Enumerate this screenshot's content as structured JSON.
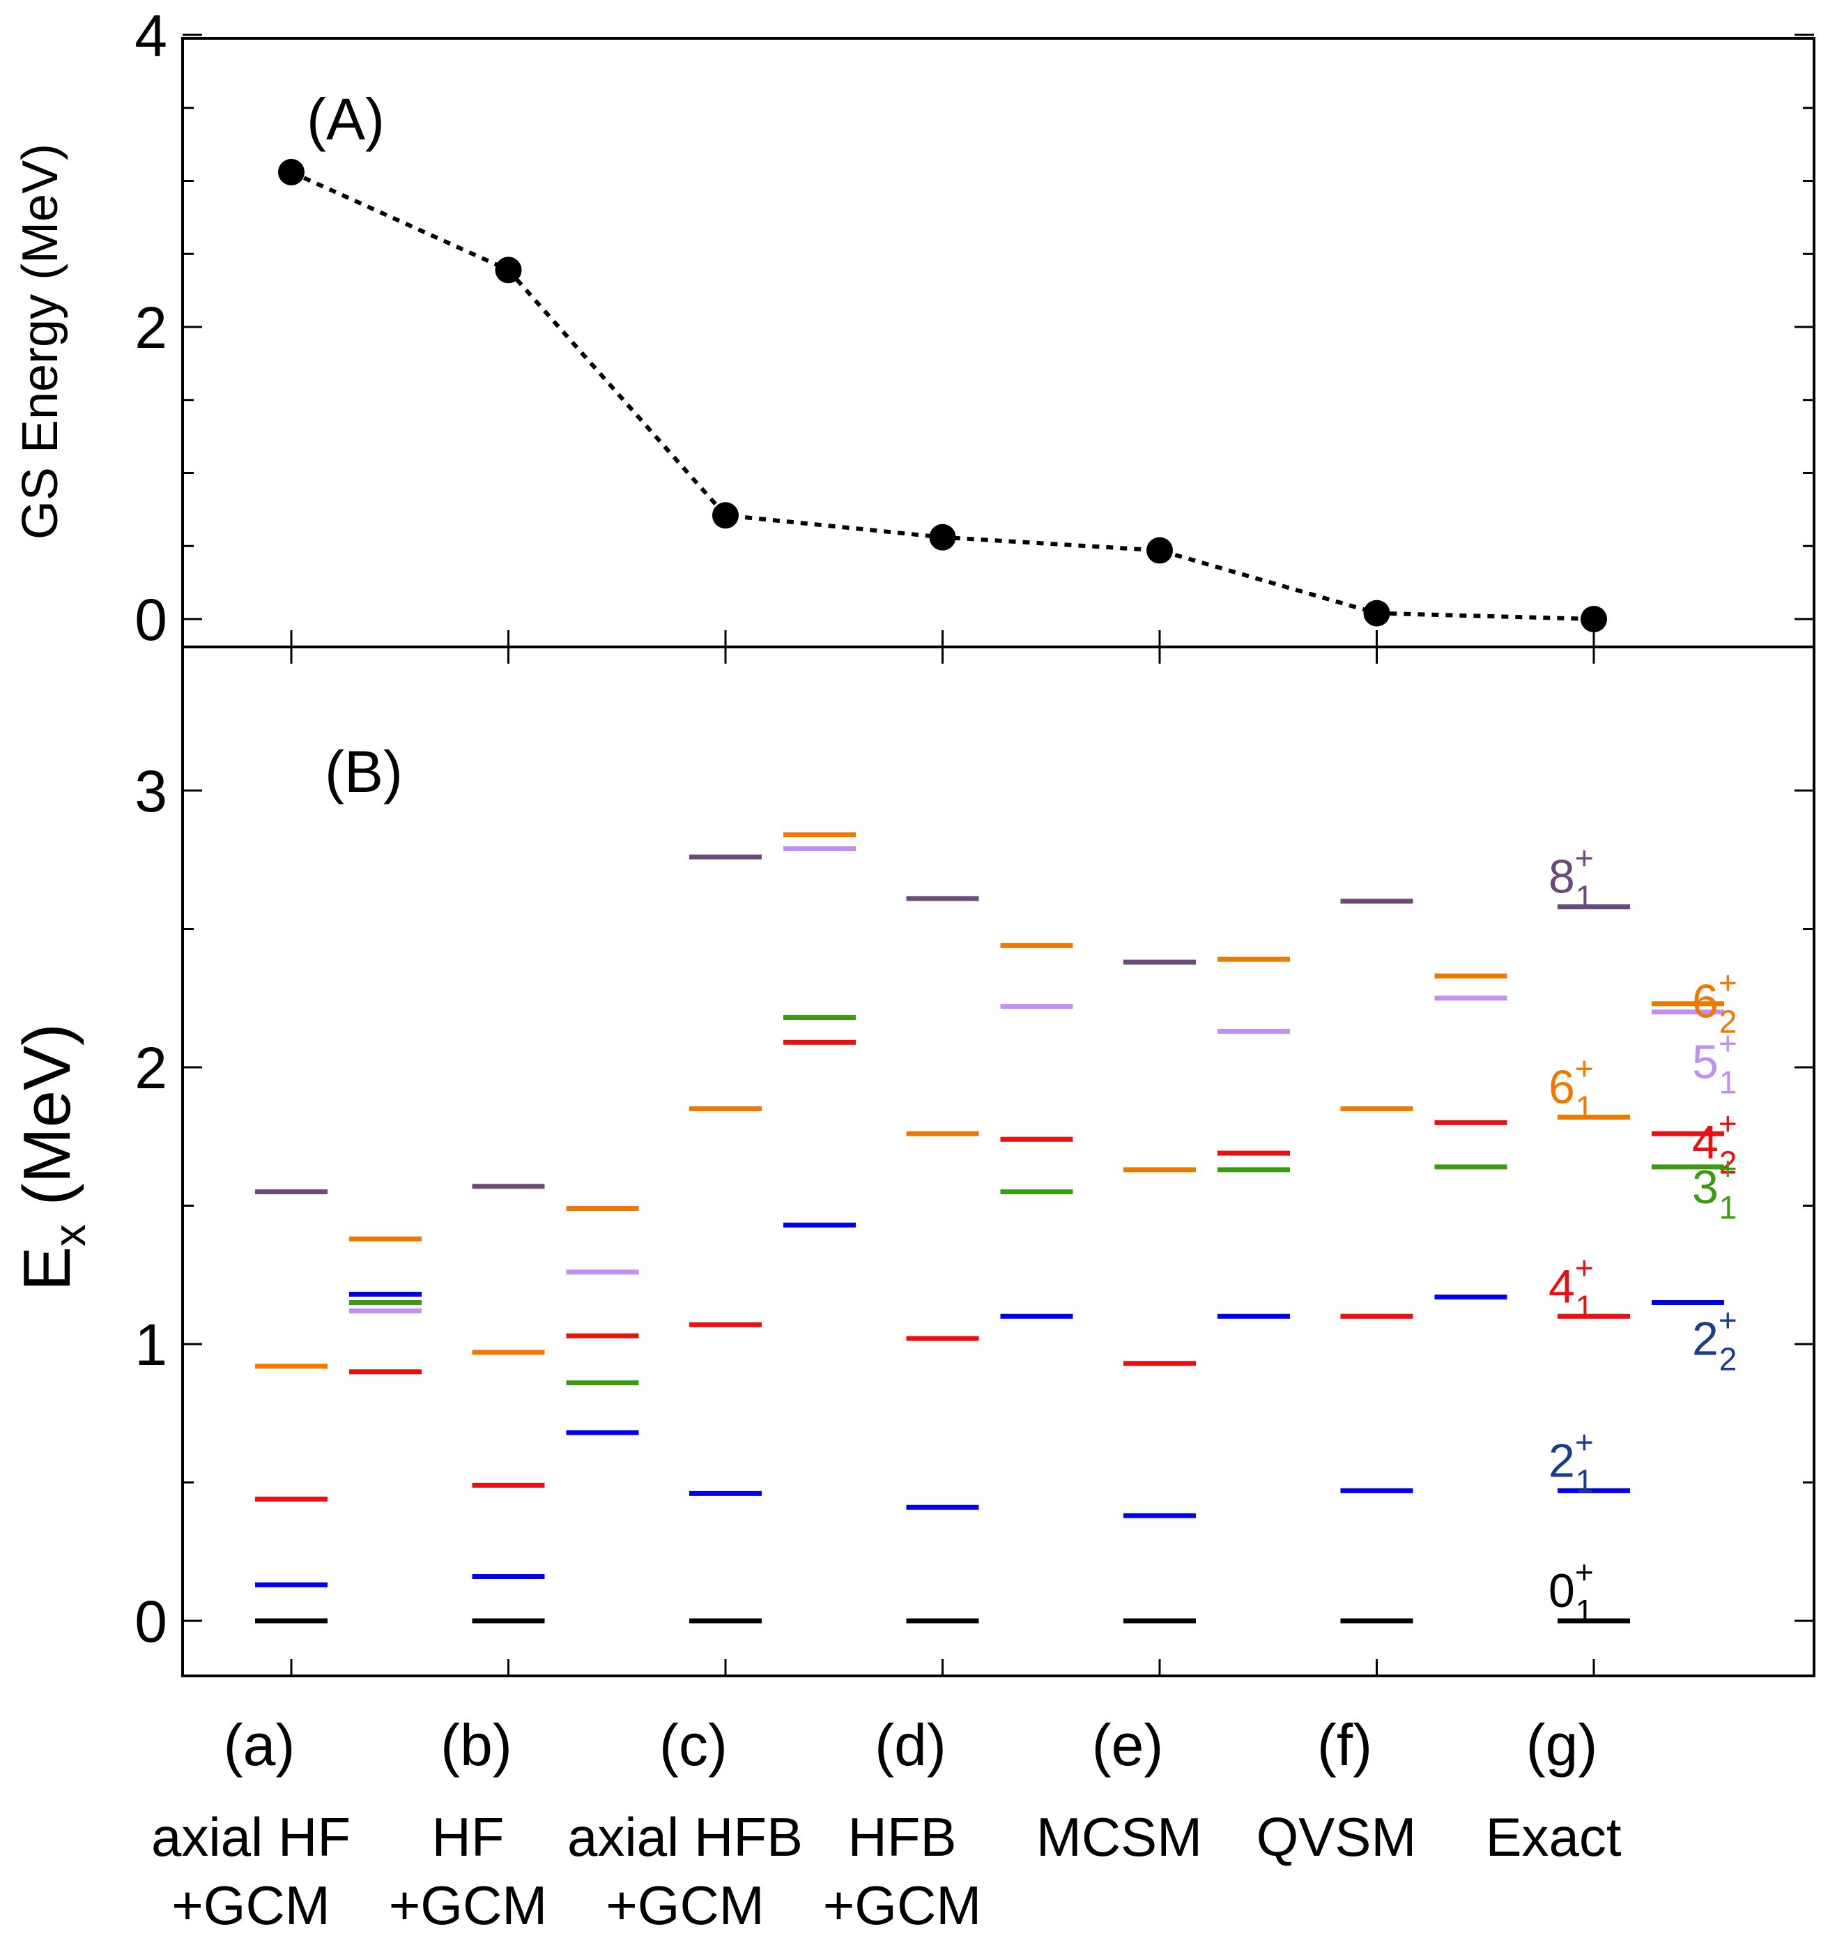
{
  "chart_data": [
    {
      "panel": "A",
      "type": "line",
      "title": "",
      "panel_label": "(A)",
      "xlabel": "",
      "ylabel": "GS Energy (MeV)",
      "ylim": [
        -0.35,
        4.0
      ],
      "yticks": [
        0,
        2,
        4
      ],
      "ytick_labels": [
        "0",
        "2",
        "4"
      ],
      "line_style": "dotted",
      "marker": "filled-circle",
      "color": "#000000",
      "x": [
        "a",
        "b",
        "c",
        "d",
        "e",
        "f",
        "g"
      ],
      "values": [
        3.06,
        2.39,
        0.71,
        0.56,
        0.47,
        0.04,
        0.0
      ]
    },
    {
      "panel": "B",
      "type": "level-scheme",
      "panel_label": "(B)",
      "ylabel_main": "E",
      "ylabel_sub": "x",
      "ylabel_unit": " (MeV)",
      "ylim": [
        -0.2,
        3.5
      ],
      "yticks": [
        0,
        1,
        2,
        3
      ],
      "ytick_labels": [
        "0",
        "1",
        "2",
        "3"
      ],
      "categories": [
        {
          "key": "a",
          "label": "(a)",
          "name_line1": "axial HF",
          "name_line2": "+GCM"
        },
        {
          "key": "b",
          "label": "(b)",
          "name_line1": "HF",
          "name_line2": "+GCM"
        },
        {
          "key": "c",
          "label": "(c)",
          "name_line1": "axial HFB",
          "name_line2": "+GCM"
        },
        {
          "key": "d",
          "label": "(d)",
          "name_line1": "HFB",
          "name_line2": "+GCM"
        },
        {
          "key": "e",
          "label": "(e)",
          "name_line1": "MCSM",
          "name_line2": ""
        },
        {
          "key": "f",
          "label": "(f)",
          "name_line1": "QVSM",
          "name_line2": ""
        },
        {
          "key": "g",
          "label": "(g)",
          "name_line1": "Exact",
          "name_line2": ""
        }
      ],
      "state_colors": {
        "0+1": "#000000",
        "2+1": "#0000ee",
        "4+1": "#e81010",
        "6+1": "#f07800",
        "8+1": "#6a4a78",
        "2+2": "#0000ee",
        "3+1": "#3c9a10",
        "4+2": "#e81010",
        "5+1": "#c090f0",
        "6+2": "#f07800"
      },
      "series": [
        {
          "key": "a",
          "left": {
            "0+1": 0.0,
            "2+1": 0.13,
            "4+1": 0.44,
            "6+1": 0.92,
            "8+1": 1.55
          },
          "right": {
            "2+2": 1.18,
            "3+1": 1.15,
            "4+2": 0.9,
            "5+1": 1.12,
            "6+2": 1.38
          }
        },
        {
          "key": "b",
          "left": {
            "0+1": 0.0,
            "2+1": 0.16,
            "4+1": 0.49,
            "6+1": 0.97,
            "8+1": 1.57
          },
          "right": {
            "2+2": 0.68,
            "3+1": 0.86,
            "4+2": 1.03,
            "5+1": 1.26,
            "6+2": 1.49
          }
        },
        {
          "key": "c",
          "left": {
            "0+1": 0.0,
            "2+1": 0.46,
            "4+1": 1.07,
            "6+1": 1.85,
            "8+1": 2.76
          },
          "right": {
            "2+2": 1.43,
            "3+1": 2.18,
            "4+2": 2.09,
            "5+1": 2.79,
            "6+2": 2.84
          }
        },
        {
          "key": "d",
          "left": {
            "0+1": 0.0,
            "2+1": 0.41,
            "4+1": 1.02,
            "6+1": 1.76,
            "8+1": 2.61
          },
          "right": {
            "2+2": 1.1,
            "3+1": 1.55,
            "4+2": 1.74,
            "5+1": 2.22,
            "6+2": 2.44
          }
        },
        {
          "key": "e",
          "left": {
            "0+1": 0.0,
            "2+1": 0.38,
            "4+1": 0.93,
            "6+1": 1.63,
            "8+1": 2.38
          },
          "right": {
            "2+2": 1.1,
            "3+1": 1.63,
            "4+2": 1.69,
            "5+1": 2.13,
            "6+2": 2.39
          }
        },
        {
          "key": "f",
          "left": {
            "0+1": 0.0,
            "2+1": 0.47,
            "4+1": 1.1,
            "6+1": 1.85,
            "8+1": 2.6
          },
          "right": {
            "2+2": 1.17,
            "3+1": 1.64,
            "4+2": 1.8,
            "5+1": 2.25,
            "6+2": 2.33
          }
        },
        {
          "key": "g",
          "left": {
            "0+1": 0.0,
            "2+1": 0.47,
            "4+1": 1.1,
            "6+1": 1.82,
            "8+1": 2.58
          },
          "right": {
            "2+2": 1.15,
            "3+1": 1.64,
            "4+2": 1.76,
            "5+1": 2.2,
            "6+2": 2.23
          }
        }
      ],
      "level_labels_left": [
        {
          "state": "8+1",
          "base": "8",
          "sup": "+",
          "sub": "1",
          "color": "#6a4a78"
        },
        {
          "state": "6+1",
          "base": "6",
          "sup": "+",
          "sub": "1",
          "color": "#f07800"
        },
        {
          "state": "4+1",
          "base": "4",
          "sup": "+",
          "sub": "1",
          "color": "#e81010"
        },
        {
          "state": "2+1",
          "base": "2",
          "sup": "+",
          "sub": "1",
          "color": "#1a3c8c"
        },
        {
          "state": "0+1",
          "base": "0",
          "sup": "+",
          "sub": "1",
          "color": "#000000"
        }
      ],
      "level_labels_right": [
        {
          "state": "6+2",
          "base": "6",
          "sup": "+",
          "sub": "2",
          "color": "#f07800"
        },
        {
          "state": "5+1",
          "base": "5",
          "sup": "+",
          "sub": "1",
          "color": "#c090f0"
        },
        {
          "state": "4+2",
          "base": "4",
          "sup": "+",
          "sub": "2",
          "color": "#e81010"
        },
        {
          "state": "3+1",
          "base": "3",
          "sup": "+",
          "sub": "1",
          "color": "#3c9a10"
        },
        {
          "state": "2+2",
          "base": "2",
          "sup": "+",
          "sub": "2",
          "color": "#1a3c8c"
        }
      ]
    }
  ]
}
